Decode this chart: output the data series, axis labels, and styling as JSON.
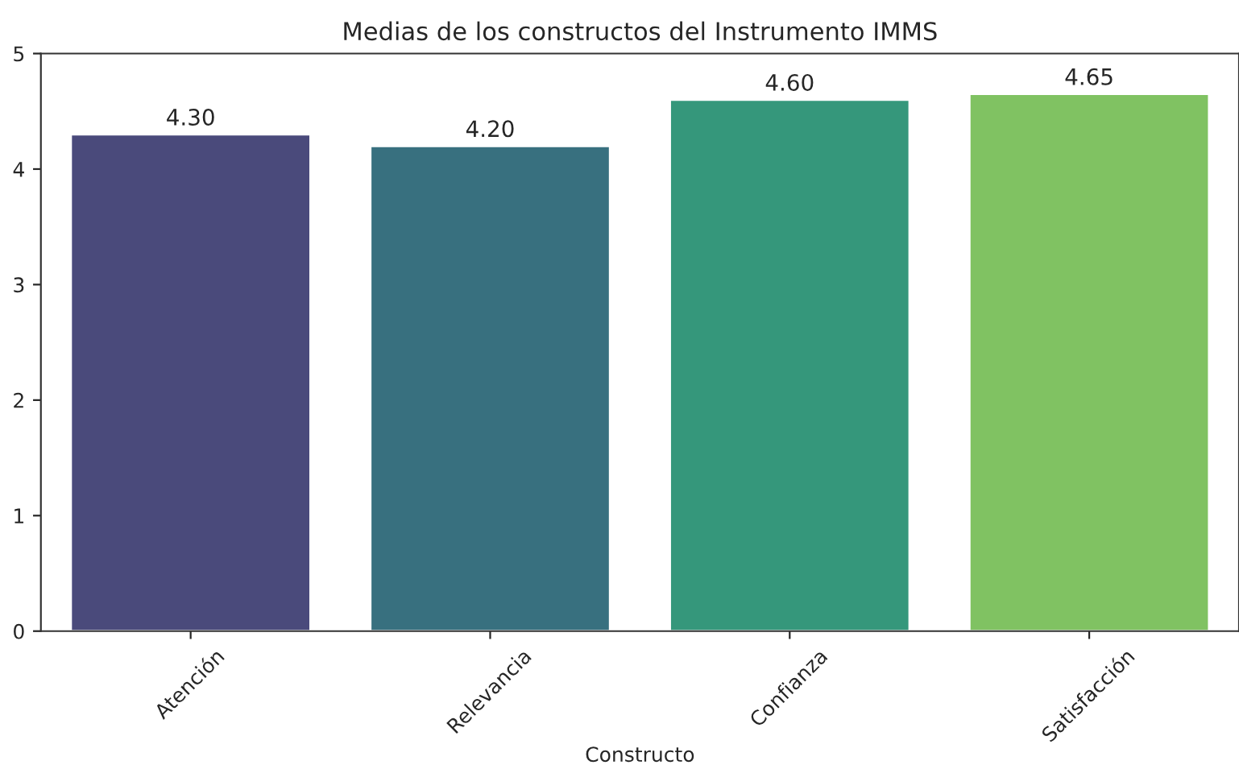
{
  "chart_data": {
    "type": "bar",
    "title": "Medias de los constructos del Instrumento IMMS",
    "xlabel": "Constructo",
    "categories": [
      "Atención",
      "Relevancia",
      "Confianza",
      "Satisfacción"
    ],
    "values": [
      4.3,
      4.2,
      4.6,
      4.65
    ],
    "colors": [
      "#4a4a7b",
      "#38707f",
      "#35977b",
      "#80c262"
    ],
    "value_labels": [
      "4.30",
      "4.20",
      "4.60",
      "4.65"
    ],
    "ylim": [
      0,
      5
    ],
    "yticks": [
      0,
      1,
      2,
      3,
      4,
      5
    ],
    "grid": false
  }
}
